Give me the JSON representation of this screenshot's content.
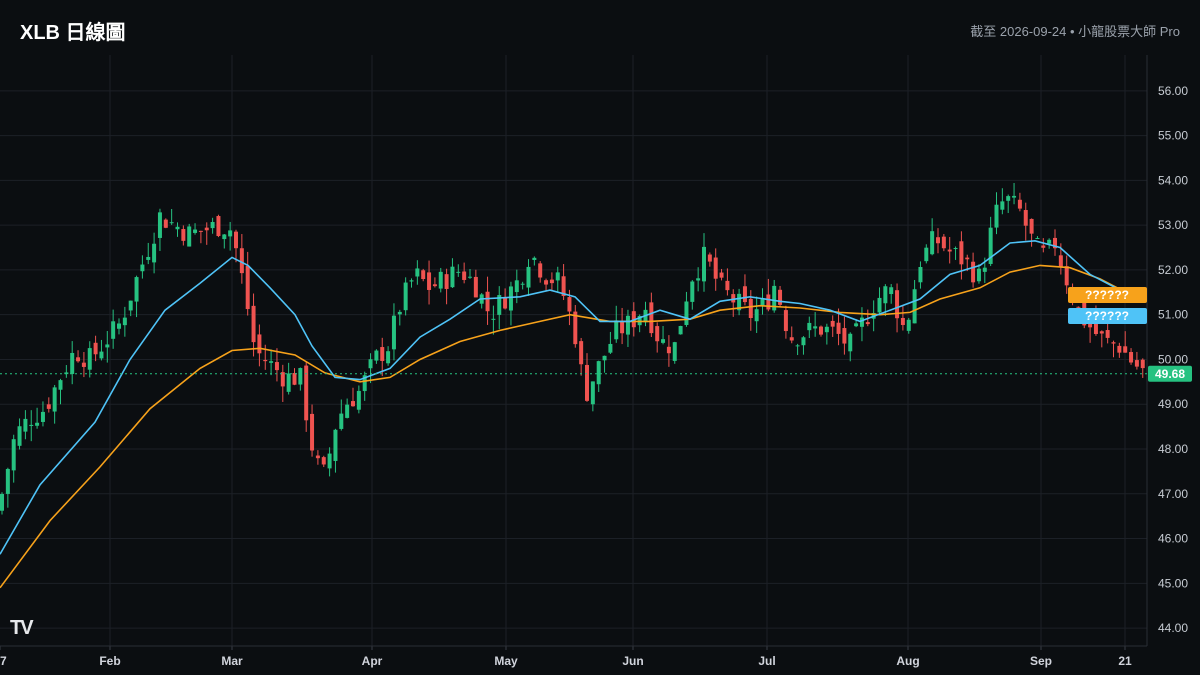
{
  "header": {
    "title": "XLB 日線圖",
    "subtitle": "截至 2026-09-24 • 小龍股票大師 Pro"
  },
  "ma_tags": {
    "orange_label": "??????",
    "blue_label": "??????",
    "orange_color": "#f7a21b",
    "blue_color": "#4fc3f7"
  },
  "colors": {
    "background": "#0b0e11",
    "up": "#26c281",
    "down": "#ef5350",
    "price_tag": "#26c281"
  },
  "logo": "TV",
  "chart_data": {
    "type": "candlestick",
    "ticker": "XLB",
    "ylim": [
      43.6,
      56.8
    ],
    "y_ticks": [
      "44.00",
      "45.00",
      "46.00",
      "47.00",
      "48.00",
      "49.00",
      "50.00",
      "51.00",
      "52.00",
      "53.00",
      "54.00",
      "55.00",
      "56.00"
    ],
    "x_ticks": [
      "7",
      "Feb",
      "Mar",
      "Apr",
      "May",
      "Jun",
      "Jul",
      "Aug",
      "Sep",
      "21"
    ],
    "last_price": "49.68",
    "last_price_value": 49.68,
    "grid": true,
    "close_series": [
      [
        0,
        46.8
      ],
      [
        15,
        48.3
      ],
      [
        30,
        48.7
      ],
      [
        45,
        48.9
      ],
      [
        60,
        49.6
      ],
      [
        75,
        50.2
      ],
      [
        90,
        50.0
      ],
      [
        105,
        50.4
      ],
      [
        120,
        50.8
      ],
      [
        135,
        51.7
      ],
      [
        150,
        52.6
      ],
      [
        160,
        53.2
      ],
      [
        175,
        53.0
      ],
      [
        190,
        52.8
      ],
      [
        205,
        52.9
      ],
      [
        220,
        53.0
      ],
      [
        232,
        52.9
      ],
      [
        245,
        51.5
      ],
      [
        255,
        50.2
      ],
      [
        270,
        49.9
      ],
      [
        285,
        49.6
      ],
      [
        300,
        49.6
      ],
      [
        315,
        47.7
      ],
      [
        325,
        47.4
      ],
      [
        335,
        48.5
      ],
      [
        345,
        49.0
      ],
      [
        360,
        49.3
      ],
      [
        375,
        50.0
      ],
      [
        388,
        50.3
      ],
      [
        400,
        51.2
      ],
      [
        415,
        51.9
      ],
      [
        430,
        51.6
      ],
      [
        445,
        51.8
      ],
      [
        460,
        52.0
      ],
      [
        475,
        51.7
      ],
      [
        490,
        51.0
      ],
      [
        505,
        51.4
      ],
      [
        520,
        51.8
      ],
      [
        530,
        52.4
      ],
      [
        545,
        51.9
      ],
      [
        560,
        51.7
      ],
      [
        575,
        50.6
      ],
      [
        585,
        49.2
      ],
      [
        600,
        49.9
      ],
      [
        615,
        50.6
      ],
      [
        630,
        50.8
      ],
      [
        645,
        51.2
      ],
      [
        660,
        50.4
      ],
      [
        675,
        50.3
      ],
      [
        690,
        51.8
      ],
      [
        705,
        52.3
      ],
      [
        720,
        51.6
      ],
      [
        735,
        51.3
      ],
      [
        750,
        51.0
      ],
      [
        765,
        51.2
      ],
      [
        775,
        51.7
      ],
      [
        790,
        50.5
      ],
      [
        805,
        50.6
      ],
      [
        820,
        50.7
      ],
      [
        835,
        50.6
      ],
      [
        850,
        50.3
      ],
      [
        865,
        50.9
      ],
      [
        875,
        51.3
      ],
      [
        890,
        51.6
      ],
      [
        905,
        50.6
      ],
      [
        920,
        52.2
      ],
      [
        935,
        52.7
      ],
      [
        950,
        52.4
      ],
      [
        965,
        52.2
      ],
      [
        980,
        51.8
      ],
      [
        995,
        53.2
      ],
      [
        1005,
        53.6
      ],
      [
        1020,
        53.3
      ],
      [
        1035,
        52.5
      ],
      [
        1045,
        52.3
      ],
      [
        1055,
        52.6
      ],
      [
        1065,
        51.9
      ],
      [
        1080,
        51.0
      ],
      [
        1095,
        50.6
      ],
      [
        1105,
        50.4
      ],
      [
        1120,
        50.3
      ],
      [
        1130,
        50.0
      ],
      [
        1145,
        49.68
      ]
    ],
    "ma_blue": [
      [
        0,
        45.65
      ],
      [
        40,
        47.2
      ],
      [
        95,
        48.6
      ],
      [
        130,
        50.0
      ],
      [
        165,
        51.1
      ],
      [
        200,
        51.7
      ],
      [
        232,
        52.28
      ],
      [
        248,
        52.1
      ],
      [
        270,
        51.6
      ],
      [
        295,
        51.0
      ],
      [
        312,
        50.3
      ],
      [
        335,
        49.6
      ],
      [
        360,
        49.55
      ],
      [
        390,
        49.8
      ],
      [
        420,
        50.5
      ],
      [
        450,
        50.9
      ],
      [
        480,
        51.35
      ],
      [
        520,
        51.4
      ],
      [
        550,
        51.55
      ],
      [
        575,
        51.4
      ],
      [
        600,
        50.85
      ],
      [
        630,
        50.85
      ],
      [
        660,
        51.1
      ],
      [
        690,
        50.9
      ],
      [
        720,
        51.3
      ],
      [
        750,
        51.4
      ],
      [
        780,
        51.3
      ],
      [
        800,
        51.25
      ],
      [
        830,
        51.1
      ],
      [
        860,
        50.85
      ],
      [
        890,
        51.1
      ],
      [
        920,
        51.35
      ],
      [
        950,
        51.9
      ],
      [
        980,
        52.1
      ],
      [
        1010,
        52.6
      ],
      [
        1035,
        52.65
      ],
      [
        1060,
        52.5
      ],
      [
        1090,
        51.9
      ],
      [
        1120,
        51.55
      ],
      [
        1140,
        51.3
      ]
    ],
    "ma_orange": [
      [
        0,
        44.9
      ],
      [
        50,
        46.4
      ],
      [
        100,
        47.6
      ],
      [
        150,
        48.9
      ],
      [
        200,
        49.8
      ],
      [
        232,
        50.2
      ],
      [
        260,
        50.25
      ],
      [
        295,
        50.1
      ],
      [
        325,
        49.7
      ],
      [
        360,
        49.5
      ],
      [
        390,
        49.6
      ],
      [
        420,
        50.0
      ],
      [
        460,
        50.4
      ],
      [
        500,
        50.65
      ],
      [
        540,
        50.85
      ],
      [
        570,
        51.0
      ],
      [
        610,
        50.85
      ],
      [
        650,
        50.85
      ],
      [
        690,
        50.9
      ],
      [
        720,
        51.1
      ],
      [
        760,
        51.2
      ],
      [
        800,
        51.15
      ],
      [
        840,
        51.05
      ],
      [
        880,
        51.0
      ],
      [
        910,
        51.05
      ],
      [
        940,
        51.35
      ],
      [
        980,
        51.6
      ],
      [
        1010,
        51.95
      ],
      [
        1040,
        52.1
      ],
      [
        1070,
        52.05
      ],
      [
        1100,
        51.8
      ],
      [
        1130,
        51.45
      ]
    ]
  }
}
